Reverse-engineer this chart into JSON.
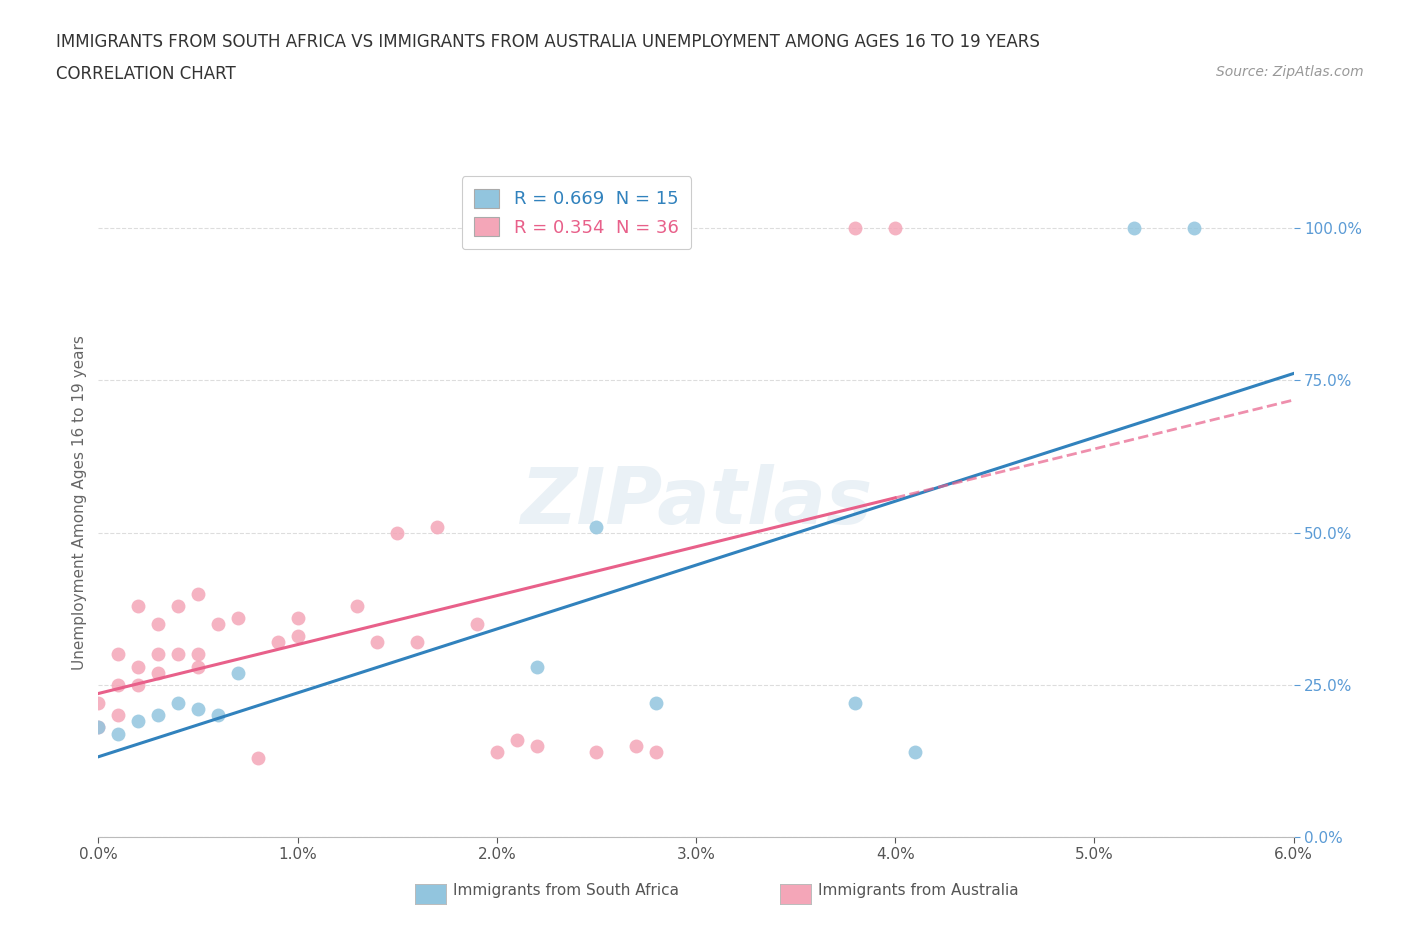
{
  "title_line1": "IMMIGRANTS FROM SOUTH AFRICA VS IMMIGRANTS FROM AUSTRALIA UNEMPLOYMENT AMONG AGES 16 TO 19 YEARS",
  "title_line2": "CORRELATION CHART",
  "source": "Source: ZipAtlas.com",
  "ylabel_label": "Unemployment Among Ages 16 to 19 years",
  "xmin": 0.0,
  "xmax": 0.06,
  "ymin": 0.0,
  "ymax": 1.1,
  "legend1_label": "R = 0.669  N = 15",
  "legend2_label": "R = 0.354  N = 36",
  "watermark": "ZIPatlas",
  "blue_color": "#92c5de",
  "pink_color": "#f4a6b8",
  "blue_line_color": "#3182bd",
  "pink_line_color": "#e8608a",
  "sa_x": [
    0.0,
    0.001,
    0.002,
    0.003,
    0.004,
    0.005,
    0.006,
    0.007,
    0.022,
    0.025,
    0.028,
    0.038,
    0.041,
    0.052,
    0.055
  ],
  "sa_y": [
    0.18,
    0.17,
    0.19,
    0.2,
    0.22,
    0.21,
    0.2,
    0.27,
    0.28,
    0.51,
    0.22,
    0.22,
    0.14,
    1.0,
    1.0
  ],
  "au_x": [
    0.0,
    0.0,
    0.001,
    0.001,
    0.001,
    0.002,
    0.002,
    0.002,
    0.003,
    0.003,
    0.003,
    0.004,
    0.004,
    0.005,
    0.005,
    0.005,
    0.006,
    0.007,
    0.008,
    0.009,
    0.01,
    0.01,
    0.013,
    0.014,
    0.015,
    0.016,
    0.017,
    0.019,
    0.02,
    0.021,
    0.022,
    0.025,
    0.027,
    0.028,
    0.038,
    0.04
  ],
  "au_y": [
    0.18,
    0.22,
    0.2,
    0.25,
    0.3,
    0.25,
    0.28,
    0.38,
    0.27,
    0.3,
    0.35,
    0.3,
    0.38,
    0.28,
    0.3,
    0.4,
    0.35,
    0.36,
    0.13,
    0.32,
    0.33,
    0.36,
    0.38,
    0.32,
    0.5,
    0.32,
    0.51,
    0.35,
    0.14,
    0.16,
    0.15,
    0.14,
    0.15,
    0.14,
    1.0,
    1.0
  ],
  "x_ticks": [
    0.0,
    0.01,
    0.02,
    0.03,
    0.04,
    0.05,
    0.06
  ],
  "y_ticks": [
    0.0,
    0.25,
    0.5,
    0.75,
    1.0
  ],
  "x_tick_labels": [
    "0.0%",
    "1.0%",
    "2.0%",
    "3.0%",
    "4.0%",
    "5.0%",
    "6.0%"
  ],
  "y_tick_labels": [
    "0.0%",
    "25.0%",
    "50.0%",
    "75.0%",
    "100.0%"
  ]
}
